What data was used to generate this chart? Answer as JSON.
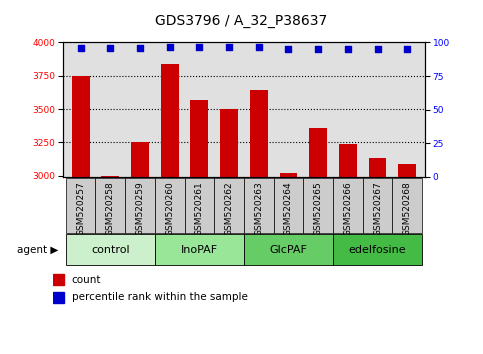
{
  "title": "GDS3796 / A_32_P38637",
  "samples": [
    "GSM520257",
    "GSM520258",
    "GSM520259",
    "GSM520260",
    "GSM520261",
    "GSM520262",
    "GSM520263",
    "GSM520264",
    "GSM520265",
    "GSM520266",
    "GSM520267",
    "GSM520268"
  ],
  "counts": [
    3750,
    2998,
    3250,
    3840,
    3570,
    3500,
    3640,
    3020,
    3360,
    3240,
    3130,
    3090
  ],
  "percentile_ranks": [
    96,
    96,
    96,
    97,
    97,
    97,
    97,
    95,
    95,
    95,
    95,
    95
  ],
  "groups": [
    {
      "label": "control",
      "indices": [
        0,
        1,
        2
      ],
      "color": "#ccf0cc"
    },
    {
      "label": "InoPAF",
      "indices": [
        3,
        4,
        5
      ],
      "color": "#99e699"
    },
    {
      "label": "GlcPAF",
      "indices": [
        6,
        7,
        8
      ],
      "color": "#66cc66"
    },
    {
      "label": "edelfosine",
      "indices": [
        9,
        10,
        11
      ],
      "color": "#44bb44"
    }
  ],
  "bar_color": "#cc0000",
  "dot_color": "#0000cc",
  "ylim_left": [
    2990,
    4000
  ],
  "ylim_right": [
    0,
    100
  ],
  "yticks_left": [
    3000,
    3250,
    3500,
    3750,
    4000
  ],
  "yticks_right": [
    0,
    25,
    50,
    75,
    100
  ],
  "grid_lines": [
    3250,
    3500,
    3750
  ],
  "legend_count_label": "count",
  "legend_pct_label": "percentile rank within the sample",
  "agent_label": "agent",
  "background_color": "#ffffff",
  "plot_bg_color": "#e0e0e0",
  "sample_box_color": "#cccccc",
  "title_fontsize": 10,
  "tick_fontsize": 6.5,
  "label_fontsize": 7.5,
  "group_label_fontsize": 8
}
